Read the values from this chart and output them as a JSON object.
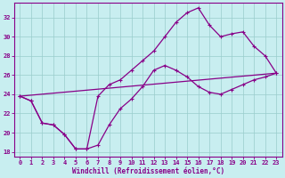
{
  "xlabel": "Windchill (Refroidissement éolien,°C)",
  "bg_color": "#c8eef0",
  "line_color": "#880088",
  "grid_color": "#99cccc",
  "ylim": [
    17.5,
    33.5
  ],
  "xlim": [
    -0.5,
    23.5
  ],
  "yticks": [
    18,
    20,
    22,
    24,
    26,
    28,
    30,
    32
  ],
  "xticks": [
    0,
    1,
    2,
    3,
    4,
    5,
    6,
    7,
    8,
    9,
    10,
    11,
    12,
    13,
    14,
    15,
    16,
    17,
    18,
    19,
    20,
    21,
    22,
    23
  ],
  "curve1_x": [
    0,
    1,
    2,
    3,
    4,
    5,
    6,
    7,
    8,
    9,
    10,
    11,
    12,
    13,
    14,
    15,
    16,
    17,
    18,
    19,
    20,
    21,
    22,
    23
  ],
  "curve1_y": [
    23.8,
    23.3,
    21.0,
    20.8,
    19.8,
    18.3,
    18.3,
    18.7,
    20.8,
    22.5,
    23.5,
    24.8,
    26.5,
    27.0,
    26.5,
    25.8,
    24.8,
    24.2,
    24.0,
    24.5,
    25.0,
    25.5,
    25.8,
    26.2
  ],
  "curve2_x": [
    0,
    1,
    2,
    3,
    4,
    5,
    6,
    7,
    8,
    9,
    10,
    11,
    12,
    13,
    14,
    15,
    16,
    17,
    18,
    19,
    20,
    21,
    22,
    23
  ],
  "curve2_y": [
    23.8,
    23.3,
    21.0,
    20.8,
    19.8,
    18.3,
    18.3,
    23.8,
    25.0,
    25.5,
    26.5,
    27.5,
    28.5,
    30.0,
    31.5,
    32.5,
    33.0,
    31.2,
    30.0,
    30.3,
    30.5,
    29.0,
    28.0,
    26.2
  ],
  "curve3_x": [
    0,
    23
  ],
  "curve3_y": [
    23.8,
    26.2
  ]
}
